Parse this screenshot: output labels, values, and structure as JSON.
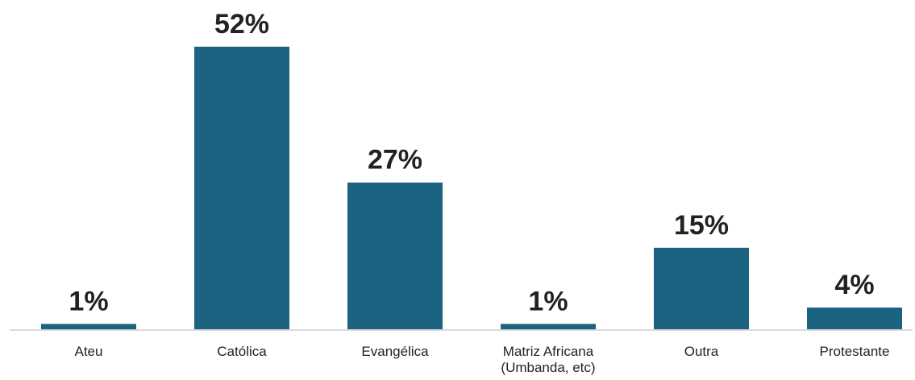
{
  "chart_data": {
    "type": "bar",
    "categories": [
      "Ateu",
      "Católica",
      "Evangélica",
      "Matriz Africana\n(Umbanda, etc)",
      "Outra",
      "Protestante"
    ],
    "values": [
      1,
      52,
      27,
      1,
      15,
      4
    ],
    "value_labels": [
      "1%",
      "52%",
      "27%",
      "1%",
      "15%",
      "4%"
    ],
    "unit": "%",
    "title": "",
    "xlabel": "",
    "ylabel": "",
    "ylim": [
      0,
      52
    ],
    "grid": false,
    "legend": "none",
    "colors": {
      "bar": "#1c6382",
      "axis": "#cfcfcf",
      "text": "#222222"
    }
  }
}
